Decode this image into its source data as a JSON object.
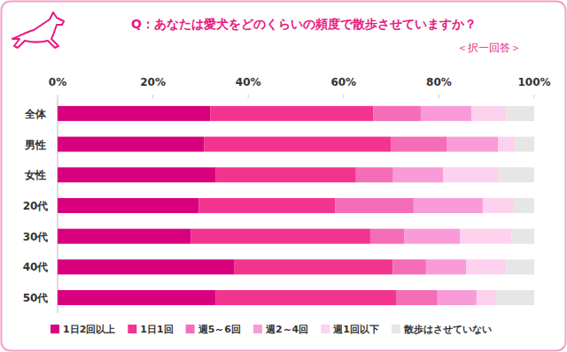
{
  "chart_data": {
    "type": "bar",
    "orientation": "horizontal",
    "stacked": true,
    "grid": false,
    "legend": "bottom",
    "title": "Q：あなたは愛犬をどのくらいの頻度で散歩させていますか？",
    "subtitle": "＜択一回答＞",
    "categories": [
      "全体",
      "男性",
      "女性",
      "20代",
      "30代",
      "40代",
      "50代"
    ],
    "xlim": [
      0,
      100
    ],
    "xticks": [
      {
        "value": 0,
        "label": "0%"
      },
      {
        "value": 20,
        "label": "20%"
      },
      {
        "value": 40,
        "label": "40%"
      },
      {
        "value": 60,
        "label": "60%"
      },
      {
        "value": 80,
        "label": "80%"
      },
      {
        "value": 100,
        "label": "100%"
      }
    ],
    "series": [
      {
        "name": "1日2回以上",
        "color": "#d9007e",
        "values": [
          32.0,
          30.7,
          33.1,
          29.6,
          27.9,
          37.0,
          33.1
        ]
      },
      {
        "name": "1日1回",
        "color": "#f2348f",
        "values": [
          34.2,
          39.2,
          29.5,
          28.6,
          37.7,
          33.3,
          37.9
        ]
      },
      {
        "name": "週5～6回",
        "color": "#f56db6",
        "values": [
          10.0,
          11.7,
          7.8,
          16.5,
          7.1,
          7.0,
          8.7
        ]
      },
      {
        "name": "週2～4回",
        "color": "#f99bd8",
        "values": [
          10.6,
          10.8,
          10.5,
          14.5,
          11.7,
          8.4,
          8.2
        ]
      },
      {
        "name": "週1回以下",
        "color": "#fcd2ef",
        "values": [
          7.3,
          3.5,
          11.5,
          6.5,
          10.8,
          8.4,
          4.1
        ]
      },
      {
        "name": "散歩はさせていない",
        "color": "#e6e6e6",
        "values": [
          5.9,
          4.1,
          7.6,
          4.3,
          4.8,
          5.9,
          8.0
        ]
      }
    ]
  }
}
